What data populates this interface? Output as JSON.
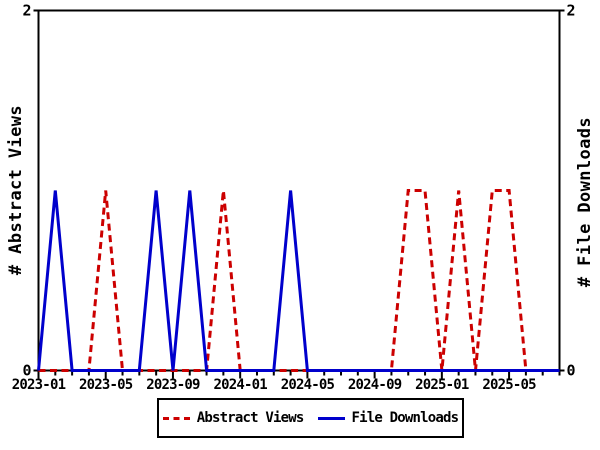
{
  "chart_data": {
    "type": "line",
    "title": "",
    "x": [
      "2023-01",
      "2023-02",
      "2023-03",
      "2023-04",
      "2023-05",
      "2023-06",
      "2023-07",
      "2023-08",
      "2023-09",
      "2023-10",
      "2023-11",
      "2023-12",
      "2024-01",
      "2024-02",
      "2024-03",
      "2024-04",
      "2024-05",
      "2024-06",
      "2024-07",
      "2024-08",
      "2024-09",
      "2024-10",
      "2024-11",
      "2024-12",
      "2025-01",
      "2025-02",
      "2025-03",
      "2025-04",
      "2025-05",
      "2025-06",
      "2025-07",
      "2025-08"
    ],
    "series": [
      {
        "name": "Abstract Views",
        "axis": "left",
        "color": "#cc0000",
        "line_style": "dashed",
        "values": [
          0,
          0,
          0,
          0,
          1,
          0,
          0,
          0,
          0,
          0,
          0,
          1,
          0,
          0,
          0,
          0,
          0,
          0,
          0,
          0,
          0,
          0,
          1,
          1,
          0,
          1,
          0,
          1,
          1,
          0,
          0,
          0
        ]
      },
      {
        "name": "File Downloads",
        "axis": "right",
        "color": "#0000cc",
        "line_style": "solid",
        "values": [
          0,
          1,
          0,
          0,
          0,
          0,
          0,
          1,
          0,
          1,
          0,
          0,
          0,
          0,
          0,
          1,
          0,
          0,
          0,
          0,
          0,
          0,
          0,
          0,
          0,
          0,
          0,
          0,
          0,
          0,
          0,
          0
        ]
      }
    ],
    "ylabel_left": "# Abstract Views",
    "ylabel_right": "# File Downloads",
    "ylim": [
      0,
      2
    ],
    "yticks": [
      0,
      2
    ],
    "ytick_labels": [
      "0",
      "2"
    ],
    "xticks_major": [
      "2023-01",
      "2023-05",
      "2023-09",
      "2024-01",
      "2024-05",
      "2024-09",
      "2025-01",
      "2025-05"
    ],
    "xticks_minor_interval": "monthly",
    "grid": false,
    "legend_position": "bottom",
    "frame_color": "#000000",
    "background_color": "#ffffff"
  }
}
